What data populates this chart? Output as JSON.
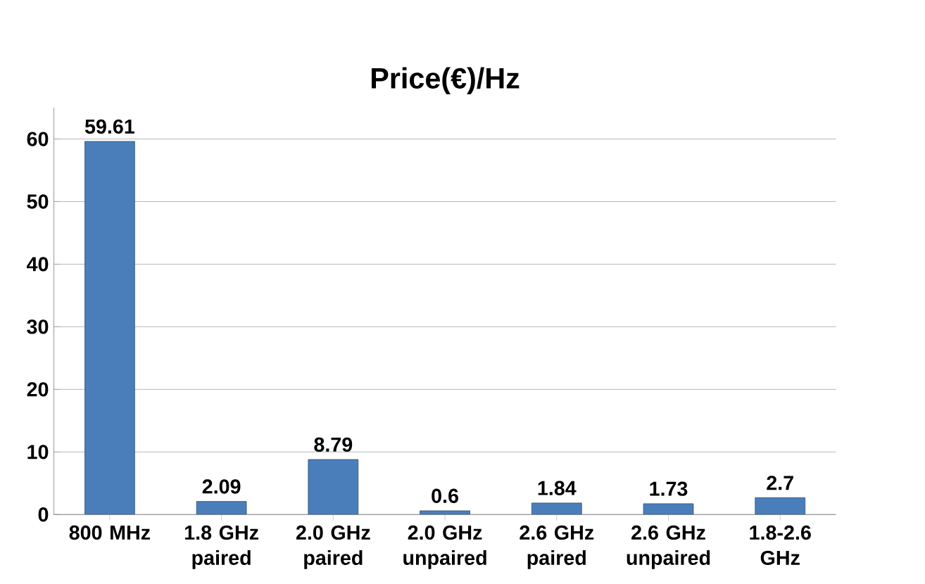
{
  "chart_data": {
    "type": "bar",
    "title": "Price(€)/Hz",
    "categories": [
      "800 MHz",
      "1.8 GHz paired",
      "2.0 GHz paired",
      "2.0 GHz unpaired",
      "2.6 GHz paired",
      "2.6 GHz unpaired",
      "1.8-2.6 GHz"
    ],
    "values": [
      59.61,
      2.09,
      8.79,
      0.6,
      1.84,
      1.73,
      2.7
    ],
    "color": "#4a7ebb",
    "ylim": [
      0,
      65
    ],
    "yticks": [
      0,
      10,
      20,
      30,
      40,
      50,
      60
    ],
    "grid": "y",
    "data_labels": true
  }
}
